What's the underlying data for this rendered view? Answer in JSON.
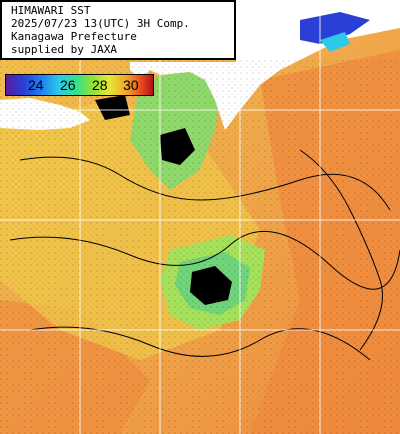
{
  "title_lines": [
    "HIMAWARI SST",
    "2025/07/23 13(UTC) 3H Comp.",
    "Kanagawa Prefecture",
    "supplied by JAXA"
  ],
  "legend": {
    "labels": [
      "24",
      "26",
      "28",
      "30"
    ],
    "colors": [
      "#5b1a9e",
      "#2a3fd6",
      "#1f7ef0",
      "#2cc9e8",
      "#33e28a",
      "#8ae23d",
      "#e6e832",
      "#f0a52a",
      "#e84a1c",
      "#b2101a"
    ]
  },
  "map_colors": {
    "sea_warm": "#f2a04a",
    "sea_mid": "#f0c04a",
    "sea_cool": "#b8e04a",
    "sea_cold": "#6cd47a",
    "cloud_mask": "#000000",
    "land": "#ffffff",
    "grid": "#ffffff"
  }
}
